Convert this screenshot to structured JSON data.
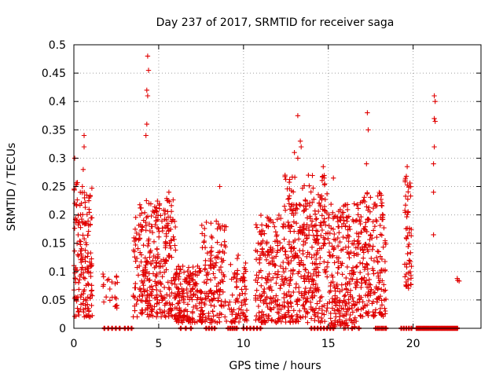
{
  "chart_data": {
    "type": "scatter",
    "title": "Day 237 of 2017, SRMTID for receiver saga",
    "xlabel": "GPS time / hours",
    "ylabel": "SRMTID / TECUs",
    "xlim": [
      0,
      24
    ],
    "ylim": [
      0,
      0.5
    ],
    "x_ticks": [
      0,
      5,
      10,
      15,
      20
    ],
    "x_tick_labels": [
      "0",
      "5",
      "10",
      "15",
      "20"
    ],
    "y_ticks": [
      0,
      0.05,
      0.1,
      0.15,
      0.2,
      0.25,
      0.3,
      0.35,
      0.4,
      0.45,
      0.5
    ],
    "y_tick_labels": [
      "0",
      "0.05",
      "0.1",
      "0.15",
      "0.2",
      "0.25",
      "0.3",
      "0.35",
      "0.4",
      "0.45",
      "0.5"
    ],
    "grid": true,
    "marker": "+",
    "color": "#e00000",
    "series": [
      {
        "name": "SRMTID",
        "clusters": [
          {
            "x_range": [
              0.0,
              1.1
            ],
            "y_range": [
              0.02,
              0.26
            ],
            "count": 170
          },
          {
            "x_range": [
              1.7,
              2.6
            ],
            "y_range": [
              0.03,
              0.1
            ],
            "count": 22
          },
          {
            "x_range": [
              3.5,
              6.0
            ],
            "y_range": [
              0.02,
              0.23
            ],
            "count": 330
          },
          {
            "x_range": [
              6.0,
              7.5
            ],
            "y_range": [
              0.01,
              0.11
            ],
            "count": 160
          },
          {
            "x_range": [
              7.5,
              9.0
            ],
            "y_range": [
              0.01,
              0.2
            ],
            "count": 150
          },
          {
            "x_range": [
              9.1,
              10.2
            ],
            "y_range": [
              0.01,
              0.13
            ],
            "count": 80
          },
          {
            "x_range": [
              10.7,
              12.4
            ],
            "y_range": [
              0.01,
              0.2
            ],
            "count": 200
          },
          {
            "x_range": [
              12.4,
              15.0
            ],
            "y_range": [
              0.01,
              0.27
            ],
            "count": 380
          },
          {
            "x_range": [
              15.0,
              16.7
            ],
            "y_range": [
              0.0,
              0.22
            ],
            "count": 240
          },
          {
            "x_range": [
              16.7,
              18.4
            ],
            "y_range": [
              0.02,
              0.24
            ],
            "count": 220
          },
          {
            "x_range": [
              19.5,
              19.9
            ],
            "y_range": [
              0.07,
              0.27
            ],
            "count": 55
          },
          {
            "x_range": [
              22.6,
              22.8
            ],
            "y_range": [
              0.08,
              0.09
            ],
            "count": 3
          }
        ],
        "peaks": [
          {
            "x": 0.05,
            "y": 0.3
          },
          {
            "x": 0.1,
            "y": 0.25
          },
          {
            "x": 0.6,
            "y": 0.34
          },
          {
            "x": 0.6,
            "y": 0.32
          },
          {
            "x": 0.55,
            "y": 0.28
          },
          {
            "x": 0.5,
            "y": 0.25
          },
          {
            "x": 4.35,
            "y": 0.48
          },
          {
            "x": 4.4,
            "y": 0.455
          },
          {
            "x": 4.3,
            "y": 0.42
          },
          {
            "x": 4.35,
            "y": 0.41
          },
          {
            "x": 4.3,
            "y": 0.36
          },
          {
            "x": 4.25,
            "y": 0.34
          },
          {
            "x": 5.6,
            "y": 0.24
          },
          {
            "x": 8.6,
            "y": 0.25
          },
          {
            "x": 13.2,
            "y": 0.375
          },
          {
            "x": 13.35,
            "y": 0.33
          },
          {
            "x": 13.4,
            "y": 0.32
          },
          {
            "x": 13.0,
            "y": 0.31
          },
          {
            "x": 13.2,
            "y": 0.3
          },
          {
            "x": 14.7,
            "y": 0.285
          },
          {
            "x": 15.3,
            "y": 0.265
          },
          {
            "x": 17.3,
            "y": 0.38
          },
          {
            "x": 17.35,
            "y": 0.35
          },
          {
            "x": 17.25,
            "y": 0.29
          },
          {
            "x": 19.65,
            "y": 0.285
          },
          {
            "x": 21.25,
            "y": 0.41
          },
          {
            "x": 21.3,
            "y": 0.4
          },
          {
            "x": 21.25,
            "y": 0.37
          },
          {
            "x": 21.3,
            "y": 0.365
          },
          {
            "x": 21.25,
            "y": 0.32
          },
          {
            "x": 21.2,
            "y": 0.29
          },
          {
            "x": 21.2,
            "y": 0.24
          },
          {
            "x": 21.2,
            "y": 0.165
          }
        ],
        "zero_values": [
          {
            "x_range": [
              1.8,
              2.7
            ],
            "count": 5
          },
          {
            "x_range": [
              3.0,
              3.4
            ],
            "count": 3
          },
          {
            "x_range": [
              6.3,
              6.9
            ],
            "count": 3
          },
          {
            "x_range": [
              7.8,
              8.3
            ],
            "count": 4
          },
          {
            "x_range": [
              9.1,
              9.6
            ],
            "count": 5
          },
          {
            "x_range": [
              10.0,
              11.0
            ],
            "count": 6
          },
          {
            "x_range": [
              14.0,
              15.3
            ],
            "count": 8
          },
          {
            "x_range": [
              16.4,
              16.8
            ],
            "count": 2
          },
          {
            "x_range": [
              17.8,
              18.4
            ],
            "count": 6
          },
          {
            "x_range": [
              19.3,
              19.9
            ],
            "count": 5
          },
          {
            "x_range": [
              20.2,
              22.6
            ],
            "count": 28
          }
        ]
      }
    ]
  }
}
